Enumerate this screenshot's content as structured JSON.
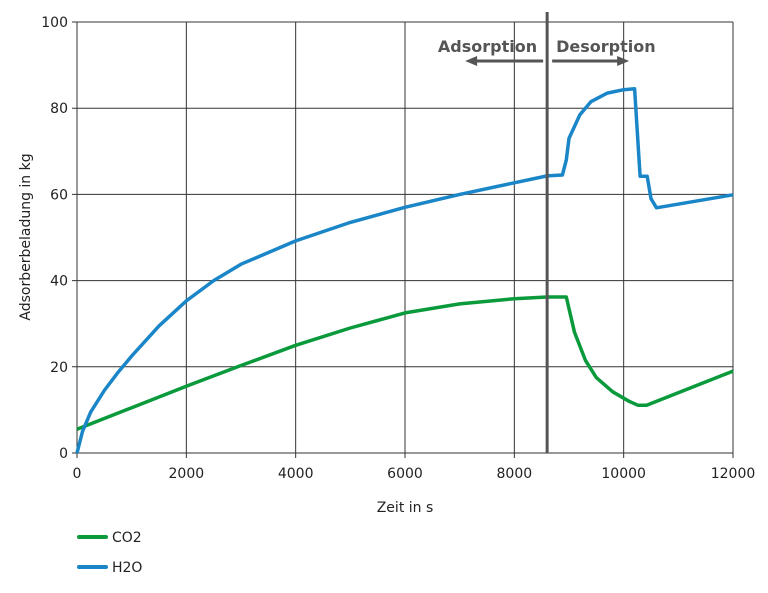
{
  "chart_data": {
    "type": "line",
    "xlabel": "Zeit in s",
    "ylabel": "Adsorberbeladung in kg",
    "xlim": [
      0,
      12000
    ],
    "ylim": [
      0,
      100
    ],
    "xticks": [
      0,
      2000,
      4000,
      6000,
      8000,
      10000,
      12000
    ],
    "yticks": [
      0,
      20,
      40,
      60,
      80,
      100
    ],
    "grid": true,
    "legend_position": "bottom-left",
    "annotations": {
      "divider_x": 8600,
      "left_label": "Adsorption",
      "right_label": "Desorption"
    },
    "series": [
      {
        "name": "CO2",
        "color": "#0a9a3c",
        "x": [
          0,
          1000,
          2000,
          3000,
          4000,
          5000,
          6000,
          7000,
          8000,
          8600,
          8950,
          9100,
          9300,
          9500,
          9800,
          10100,
          10260,
          10420,
          12000
        ],
        "y": [
          5.5,
          10.5,
          15.5,
          20.3,
          25,
          29,
          32.5,
          34.6,
          35.8,
          36.2,
          36.2,
          28,
          21.5,
          17.5,
          14.2,
          12,
          11.1,
          11.1,
          19
        ]
      },
      {
        "name": "H2O",
        "color": "#1a86c8",
        "x": [
          0,
          100,
          250,
          500,
          750,
          1000,
          1500,
          2000,
          2500,
          3000,
          4000,
          5000,
          6000,
          7000,
          8000,
          8600,
          8880,
          8950,
          9000,
          9200,
          9400,
          9700,
          10000,
          10200,
          10300,
          10430,
          10500,
          10600,
          12000
        ],
        "y": [
          0,
          5,
          9.5,
          14.5,
          18.7,
          22.5,
          29.5,
          35.3,
          40,
          43.8,
          49.2,
          53.5,
          57,
          60,
          62.7,
          64.3,
          64.5,
          68,
          73,
          78.5,
          81.5,
          83.5,
          84.3,
          84.5,
          64.2,
          64.2,
          59,
          56.9,
          59.9
        ]
      }
    ]
  }
}
